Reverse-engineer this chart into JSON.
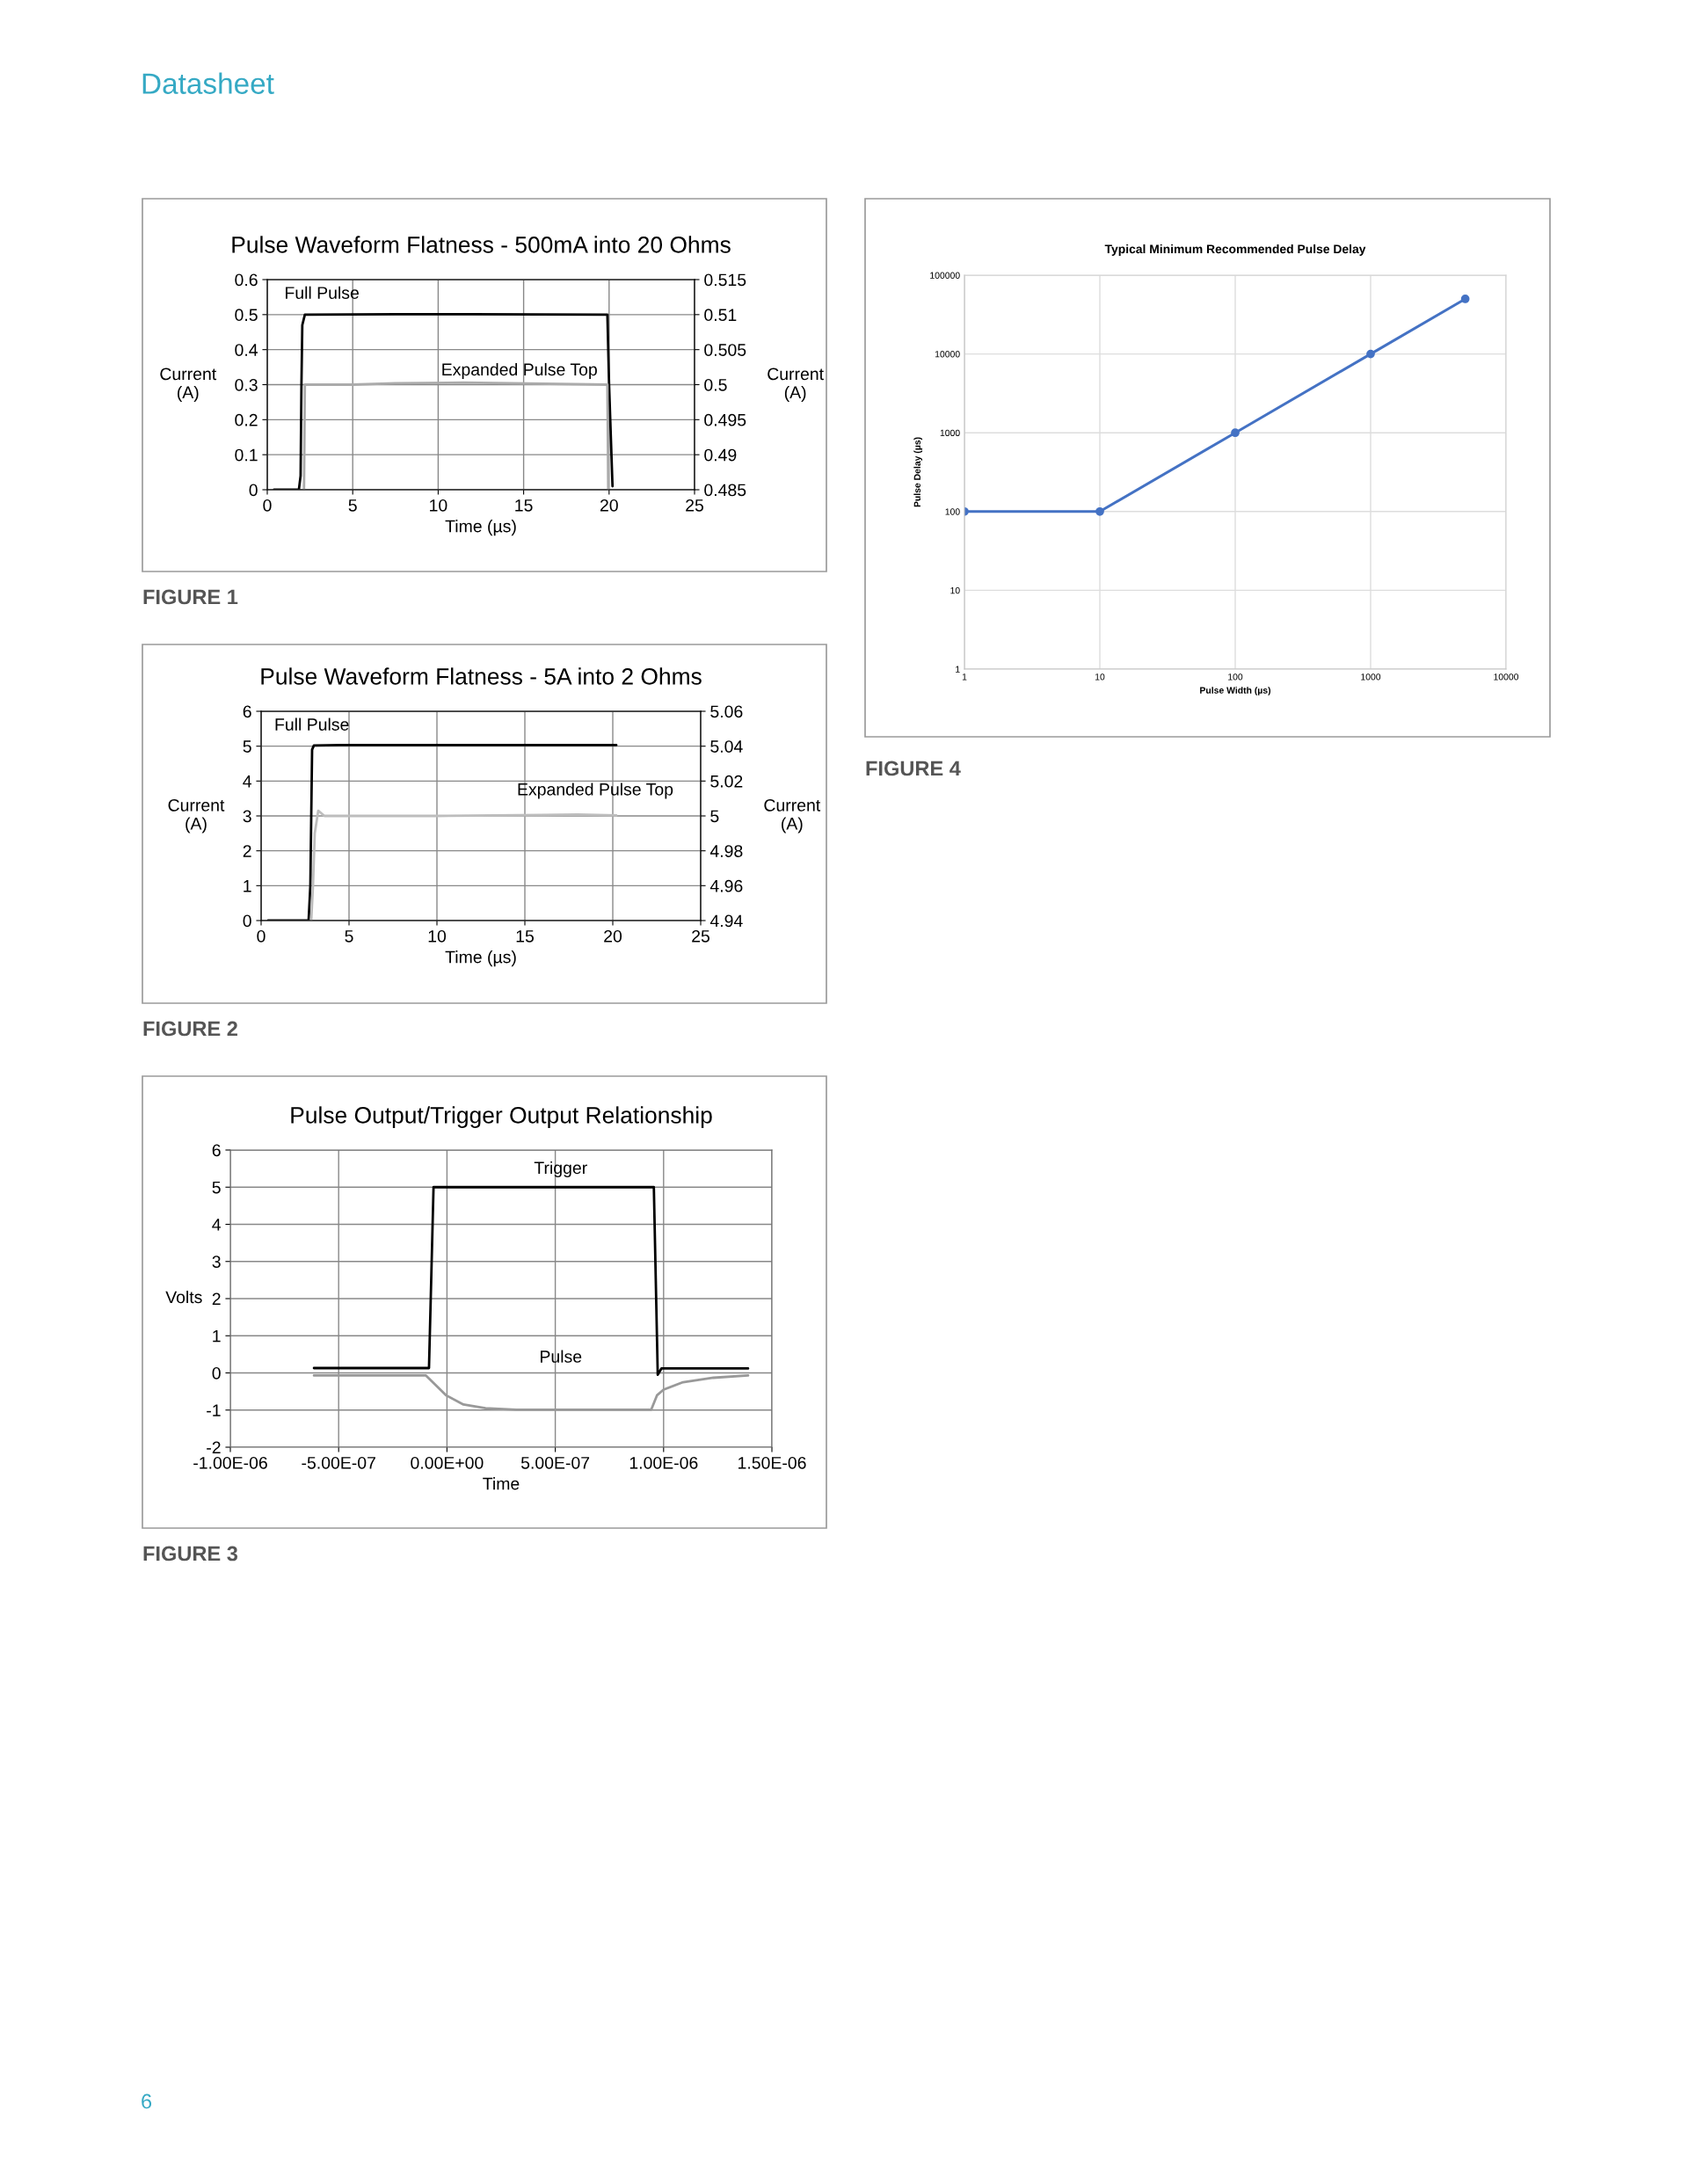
{
  "chart_data": [
    {
      "type": "line",
      "title": "Pulse Waveform Flatness - 500mA into 20 Ohms",
      "xlabel": "Time (µs)",
      "ylabel": "Current\n(A)",
      "y2label": "Current\n(A)",
      "xlim": [
        0,
        25
      ],
      "xticks": [
        0,
        5,
        10,
        15,
        20,
        25
      ],
      "ylim": [
        0,
        0.6
      ],
      "yticks": [
        0,
        0.1,
        0.2,
        0.3,
        0.4,
        0.5,
        0.6
      ],
      "y2lim": [
        0.485,
        0.515
      ],
      "y2ticks": [
        0.485,
        0.49,
        0.495,
        0.5,
        0.505,
        0.51,
        0.515
      ],
      "grid": true,
      "line_style": "solid",
      "annotations": [
        "FIGURE 1",
        "Datasheet"
      ],
      "series": [
        {
          "name": "Full Pulse",
          "color": "#000000",
          "x": [
            0.4,
            1.85,
            1.95,
            2.0,
            2.05,
            2.2,
            7.5,
            12,
            19.9,
            20.0,
            20.2
          ],
          "values": [
            0,
            0,
            0.04,
            0.3,
            0.47,
            0.5,
            0.501,
            0.501,
            0.5,
            0.3,
            0.01
          ]
        },
        {
          "name": "Expanded Pulse Top",
          "color": "#ababab",
          "axis": "y2",
          "x": [
            2.15,
            2.2,
            5,
            7.5,
            11.5,
            19.9,
            19.95
          ],
          "values": [
            0.485,
            0.5,
            0.5,
            0.5002,
            0.5003,
            0.5,
            0.485
          ]
        }
      ]
    },
    {
      "type": "line",
      "title": "Pulse Waveform Flatness - 5A into 2 Ohms",
      "xlabel": "Time (µs)",
      "ylabel": "Current\n(A)",
      "y2label": "Current\n(A)",
      "xlim": [
        0,
        25
      ],
      "xticks": [
        0,
        5,
        10,
        15,
        20,
        25
      ],
      "ylim": [
        0,
        6
      ],
      "yticks": [
        0,
        1,
        2,
        3,
        4,
        5,
        6
      ],
      "y2lim": [
        4.94,
        5.06
      ],
      "y2ticks": [
        4.94,
        4.96,
        4.98,
        5,
        5.02,
        5.04,
        5.06
      ],
      "grid": true,
      "line_style": "solid",
      "annotations": [
        "FIGURE 2"
      ],
      "series": [
        {
          "name": "Full Pulse",
          "color": "#000000",
          "x": [
            0.4,
            2.7,
            2.8,
            2.9,
            3.0,
            4.5,
            10,
            20.2
          ],
          "values": [
            0,
            0,
            1,
            4.9,
            5.02,
            5.03,
            5.03,
            5.03
          ]
        },
        {
          "name": "Expanded Pulse Top",
          "color": "#bdbdbd",
          "axis": "y2",
          "x": [
            2.85,
            2.95,
            3.05,
            3.25,
            3.6,
            10,
            16,
            18,
            20.2
          ],
          "values": [
            4.94,
            4.96,
            4.99,
            5.003,
            5.0,
            5.0,
            5.0005,
            5.0008,
            5.0003
          ]
        }
      ]
    },
    {
      "type": "line",
      "title": "Pulse Output/Trigger Output Relationship",
      "xlabel": "Time",
      "ylabel": "Volts",
      "xlim": [
        -1e-06,
        1.5e-06
      ],
      "xticks": [
        {
          "value": -1e-06,
          "label": "-1.00E-06"
        },
        {
          "value": -5e-07,
          "label": "-5.00E-07"
        },
        {
          "value": 0,
          "label": "0.00E+00"
        },
        {
          "value": 5e-07,
          "label": "5.00E-07"
        },
        {
          "value": 1e-06,
          "label": "1.00E-06"
        },
        {
          "value": 1.5e-06,
          "label": "1.50E-06"
        }
      ],
      "ylim": [
        -2,
        6
      ],
      "yticks": [
        -2,
        -1,
        0,
        1,
        2,
        3,
        4,
        5,
        6
      ],
      "grid": true,
      "line_style": "solid",
      "annotations": [
        "FIGURE 3",
        "6"
      ],
      "series": [
        {
          "name": "Trigger",
          "color": "#000000",
          "x": [
            -6.14e-07,
            -8.3e-08,
            -6.2e-08,
            9.55e-07,
            9.73e-07,
            9.9e-07,
            1.39e-06
          ],
          "values": [
            0.13,
            0.13,
            5.0,
            5.0,
            -0.05,
            0.12,
            0.12
          ]
        },
        {
          "name": "Pulse",
          "color": "#999999",
          "x": [
            -6.14e-07,
            -9.7e-08,
            -6.6e-08,
            -5e-09,
            7.6e-08,
            1.78e-07,
            3.2e-07,
            9.43e-07,
            9.7e-07,
            1e-06,
            1.09e-06,
            1.23e-06,
            1.39e-06
          ],
          "values": [
            -0.07,
            -0.07,
            -0.25,
            -0.6,
            -0.85,
            -0.95,
            -0.99,
            -0.99,
            -0.6,
            -0.45,
            -0.25,
            -0.13,
            -0.07
          ]
        }
      ]
    },
    {
      "type": "line",
      "title": "Typical Minimum Recommended Pulse Delay",
      "xlabel": "Pulse Width (µs)",
      "ylabel": "Pulse Delay (µs)",
      "log": "xy",
      "xlim": [
        1,
        10000
      ],
      "xticks": [
        1,
        10,
        100,
        1000,
        10000
      ],
      "ylim": [
        1,
        100000
      ],
      "yticks": [
        1,
        10,
        100,
        1000,
        10000,
        100000
      ],
      "grid": true,
      "marker": "circle",
      "line_style": "solid",
      "annotations": [
        "FIGURE 4"
      ],
      "series": [
        {
          "color": "#4472c4",
          "x": [
            1,
            10,
            100,
            1000,
            5000
          ],
          "values": [
            100,
            100,
            1000,
            10000,
            50000
          ]
        }
      ]
    }
  ]
}
